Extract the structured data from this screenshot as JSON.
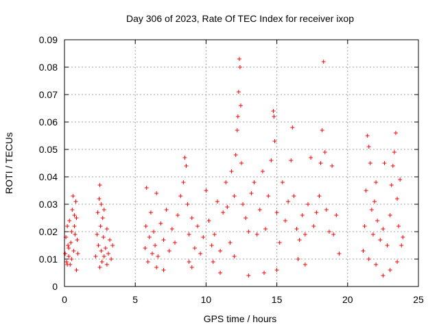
{
  "chart_data": {
    "type": "scatter",
    "title": "Day 306 of 2023, Rate Of TEC Index for receiver ixop",
    "xlabel": "GPS time / hours",
    "ylabel": "ROTI / TECUs",
    "xlim": [
      0,
      25
    ],
    "ylim": [
      0,
      0.09
    ],
    "xticks": [
      "0",
      "5",
      "10",
      "15",
      "20",
      "25"
    ],
    "yticks": [
      "0",
      "0.01",
      "0.02",
      "0.03",
      "0.04",
      "0.05",
      "0.06",
      "0.07",
      "0.08",
      "0.09"
    ],
    "grid": true,
    "marker": "plus",
    "color": "#ff0000",
    "series": [
      {
        "points": [
          [
            0.05,
            0.012
          ],
          [
            0.1,
            0.018
          ],
          [
            0.15,
            0.009
          ],
          [
            0.2,
            0.022
          ],
          [
            0.25,
            0.015
          ],
          [
            0.3,
            0.011
          ],
          [
            0.35,
            0.024
          ],
          [
            0.4,
            0.008
          ],
          [
            0.45,
            0.016
          ],
          [
            0.5,
            0.02
          ],
          [
            0.55,
            0.028
          ],
          [
            0.6,
            0.033
          ],
          [
            0.65,
            0.013
          ],
          [
            0.7,
            0.026
          ],
          [
            0.75,
            0.019
          ],
          [
            0.8,
            0.031
          ],
          [
            0.85,
            0.006
          ],
          [
            0.9,
            0.017
          ],
          [
            0.95,
            0.012
          ],
          [
            0.3,
            0.014
          ],
          [
            0.5,
            0.01
          ],
          [
            0.7,
            0.022
          ],
          [
            0.2,
            0.008
          ],
          [
            0.85,
            0.025
          ],
          [
            2.2,
            0.011
          ],
          [
            2.3,
            0.019
          ],
          [
            2.35,
            0.027
          ],
          [
            2.4,
            0.015
          ],
          [
            2.45,
            0.032
          ],
          [
            2.5,
            0.037
          ],
          [
            2.55,
            0.022
          ],
          [
            2.6,
            0.013
          ],
          [
            2.65,
            0.009
          ],
          [
            2.7,
            0.025
          ],
          [
            2.75,
            0.018
          ],
          [
            2.8,
            0.028
          ],
          [
            2.9,
            0.014
          ],
          [
            3.0,
            0.021
          ],
          [
            3.1,
            0.012
          ],
          [
            3.2,
            0.017
          ],
          [
            3.3,
            0.01
          ],
          [
            3.4,
            0.015
          ],
          [
            2.5,
            0.007
          ],
          [
            2.8,
            0.011
          ],
          [
            3.0,
            0.008
          ],
          [
            2.6,
            0.03
          ],
          [
            5.7,
            0.014
          ],
          [
            5.75,
            0.022
          ],
          [
            5.8,
            0.036
          ],
          [
            5.9,
            0.009
          ],
          [
            6.0,
            0.018
          ],
          [
            6.1,
            0.027
          ],
          [
            6.2,
            0.012
          ],
          [
            6.3,
            0.02
          ],
          [
            6.4,
            0.015
          ],
          [
            6.5,
            0.034
          ],
          [
            6.6,
            0.011
          ],
          [
            6.8,
            0.023
          ],
          [
            7.0,
            0.017
          ],
          [
            7.2,
            0.028
          ],
          [
            7.4,
            0.013
          ],
          [
            7.6,
            0.021
          ],
          [
            7.8,
            0.016
          ],
          [
            8.0,
            0.026
          ],
          [
            8.2,
            0.033
          ],
          [
            8.4,
            0.038
          ],
          [
            8.5,
            0.047
          ],
          [
            8.6,
            0.044
          ],
          [
            8.7,
            0.03
          ],
          [
            8.8,
            0.019
          ],
          [
            9.0,
            0.025
          ],
          [
            9.2,
            0.014
          ],
          [
            9.4,
            0.022
          ],
          [
            9.6,
            0.012
          ],
          [
            9.8,
            0.018
          ],
          [
            10.0,
            0.035
          ],
          [
            10.2,
            0.024
          ],
          [
            10.4,
            0.015
          ],
          [
            10.6,
            0.019
          ],
          [
            10.8,
            0.031
          ],
          [
            11.0,
            0.013
          ],
          [
            11.2,
            0.027
          ],
          [
            11.4,
            0.038
          ],
          [
            11.5,
            0.029
          ],
          [
            11.7,
            0.016
          ],
          [
            11.8,
            0.042
          ],
          [
            12.0,
            0.033
          ],
          [
            12.1,
            0.048
          ],
          [
            12.2,
            0.057
          ],
          [
            12.25,
            0.062
          ],
          [
            12.3,
            0.071
          ],
          [
            12.35,
            0.083
          ],
          [
            12.4,
            0.08
          ],
          [
            12.45,
            0.066
          ],
          [
            12.5,
            0.045
          ],
          [
            12.6,
            0.03
          ],
          [
            12.8,
            0.025
          ],
          [
            13.0,
            0.02
          ],
          [
            13.2,
            0.034
          ],
          [
            13.4,
            0.038
          ],
          [
            13.6,
            0.019
          ],
          [
            13.8,
            0.028
          ],
          [
            14.0,
            0.042
          ],
          [
            14.2,
            0.021
          ],
          [
            14.4,
            0.033
          ],
          [
            14.6,
            0.046
          ],
          [
            14.75,
            0.064
          ],
          [
            14.8,
            0.062
          ],
          [
            14.85,
            0.053
          ],
          [
            15.0,
            0.027
          ],
          [
            15.2,
            0.016
          ],
          [
            15.4,
            0.038
          ],
          [
            15.6,
            0.024
          ],
          [
            15.8,
            0.031
          ],
          [
            16.0,
            0.046
          ],
          [
            16.1,
            0.058
          ],
          [
            16.2,
            0.033
          ],
          [
            16.4,
            0.021
          ],
          [
            16.6,
            0.017
          ],
          [
            16.8,
            0.026
          ],
          [
            17.0,
            0.019
          ],
          [
            17.2,
            0.03
          ],
          [
            17.4,
            0.047
          ],
          [
            17.6,
            0.022
          ],
          [
            17.8,
            0.027
          ],
          [
            18.0,
            0.033
          ],
          [
            18.1,
            0.045
          ],
          [
            18.2,
            0.057
          ],
          [
            18.3,
            0.082
          ],
          [
            18.4,
            0.049
          ],
          [
            18.5,
            0.028
          ],
          [
            18.7,
            0.02
          ],
          [
            18.9,
            0.044
          ],
          [
            19.0,
            0.019
          ],
          [
            19.2,
            0.026
          ],
          [
            19.4,
            0.012
          ],
          [
            7.0,
            0.006
          ],
          [
            9.0,
            0.007
          ],
          [
            11.0,
            0.005
          ],
          [
            13.0,
            0.004
          ],
          [
            15.0,
            0.006
          ],
          [
            17.0,
            0.008
          ],
          [
            14.1,
            0.005
          ],
          [
            8.8,
            0.009
          ],
          [
            12.0,
            0.011
          ],
          [
            16.5,
            0.01
          ],
          [
            10.5,
            0.009
          ],
          [
            6.5,
            0.007
          ],
          [
            21.1,
            0.013
          ],
          [
            21.2,
            0.022
          ],
          [
            21.3,
            0.035
          ],
          [
            21.4,
            0.055
          ],
          [
            21.5,
            0.051
          ],
          [
            21.6,
            0.045
          ],
          [
            21.7,
            0.028
          ],
          [
            21.8,
            0.019
          ],
          [
            21.9,
            0.031
          ],
          [
            22.0,
            0.038
          ],
          [
            22.1,
            0.024
          ],
          [
            22.3,
            0.017
          ],
          [
            22.5,
            0.021
          ],
          [
            22.6,
            0.045
          ],
          [
            22.8,
            0.015
          ],
          [
            23.0,
            0.026
          ],
          [
            23.1,
            0.037
          ],
          [
            23.2,
            0.044
          ],
          [
            23.3,
            0.049
          ],
          [
            23.4,
            0.056
          ],
          [
            23.5,
            0.032
          ],
          [
            23.6,
            0.022
          ],
          [
            23.7,
            0.039
          ],
          [
            23.8,
            0.015
          ],
          [
            23.9,
            0.018
          ],
          [
            22.0,
            0.008
          ],
          [
            23.0,
            0.006
          ],
          [
            21.5,
            0.01
          ],
          [
            22.5,
            0.004
          ],
          [
            23.5,
            0.009
          ]
        ]
      }
    ]
  }
}
